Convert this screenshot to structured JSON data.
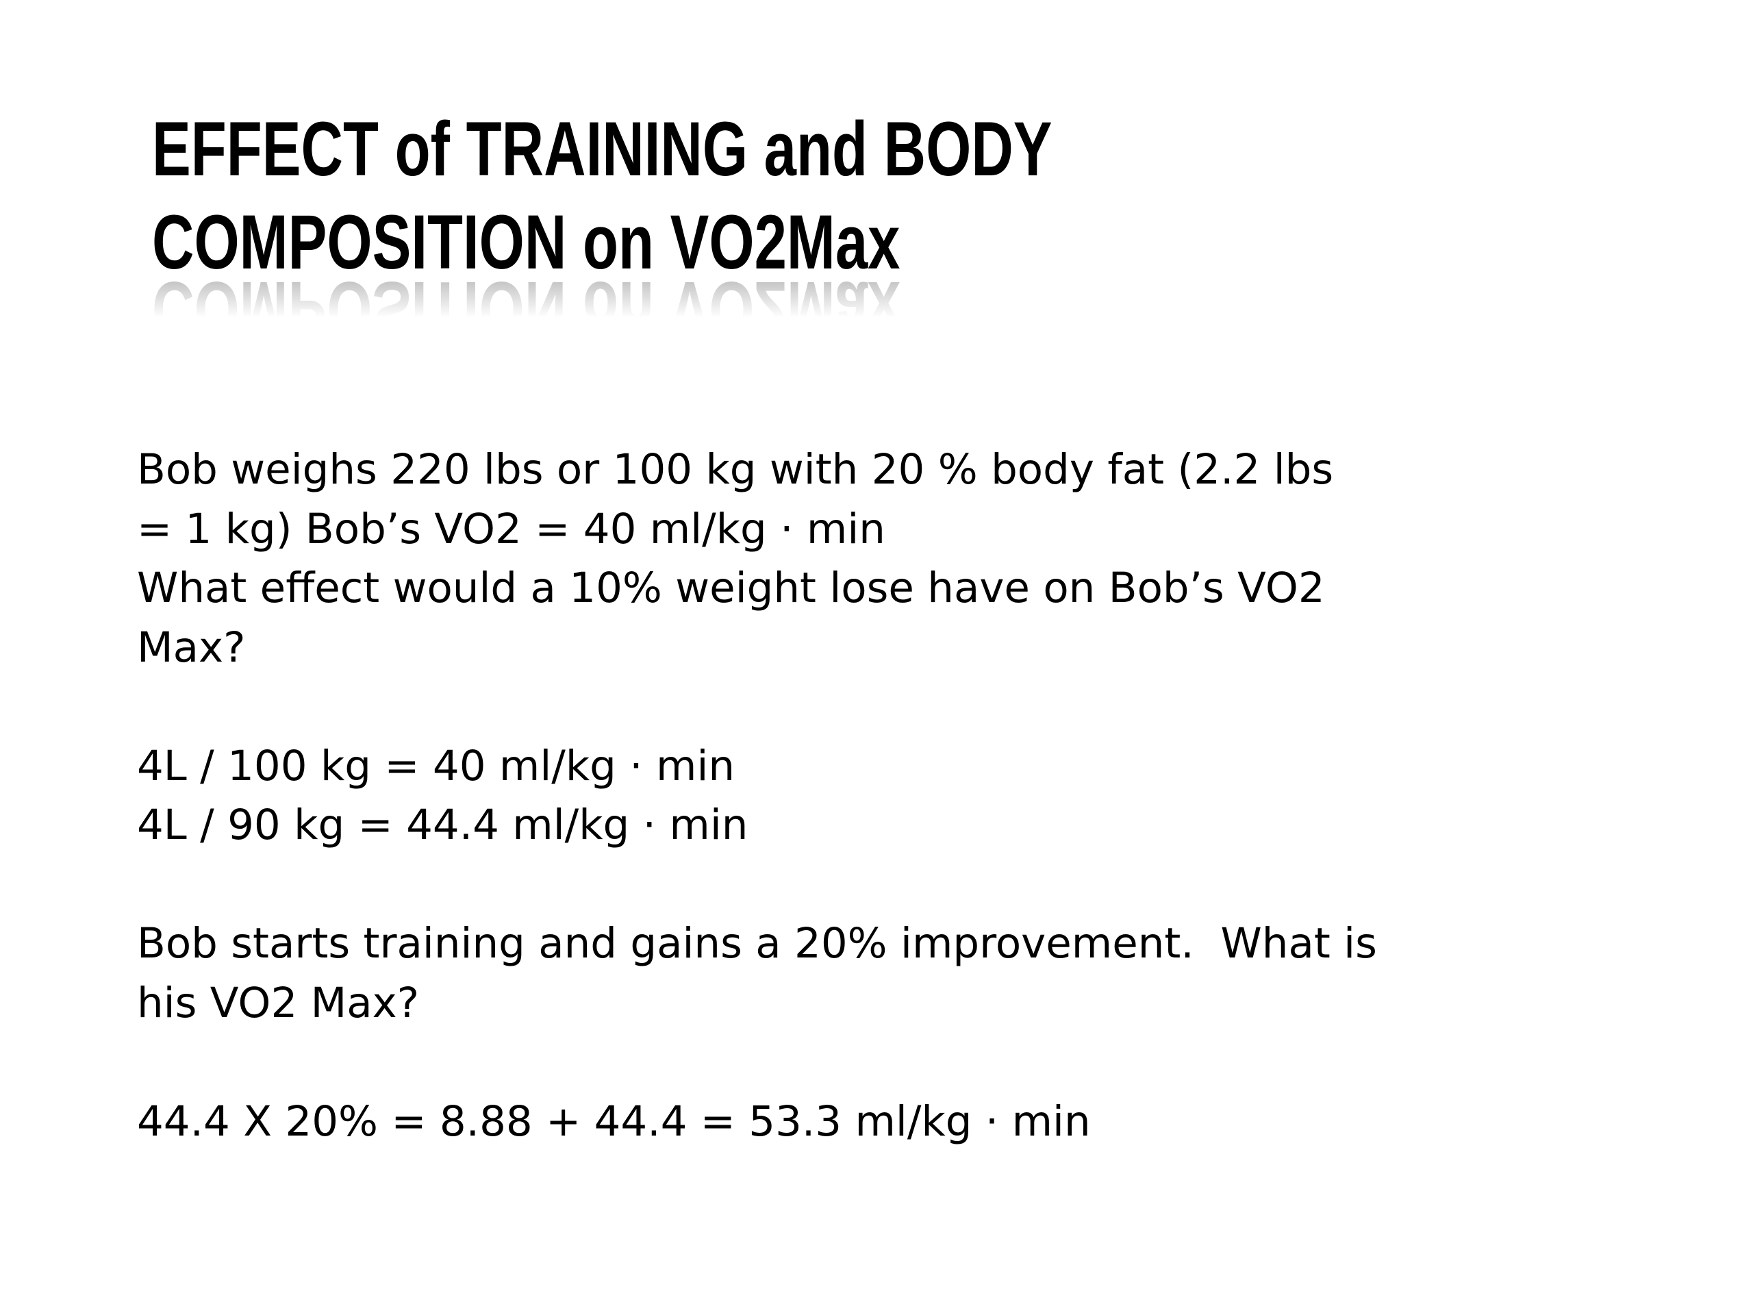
{
  "slide": {
    "title": {
      "lines": [
        "EFFECT of TRAINING and BODY",
        "COMPOSITION on VO2Max"
      ]
    },
    "body": {
      "paragraphs": [
        {
          "lines": [
            "Bob weighs 220 lbs or 100 kg with 20 % body fat (2.2 lbs",
            "= 1 kg) Bob’s VO2 = 40 ml/kg · min",
            "What effect would a 10% weight lose have on Bob’s VO2",
            "Max?"
          ]
        },
        {
          "lines": [
            "4L / 100 kg = 40 ml/kg · min",
            "4L / 90 kg = 44.4 ml/kg · min"
          ]
        },
        {
          "lines": [
            "Bob starts training and gains a 20% improvement.  What is",
            "his VO2 Max?"
          ]
        },
        {
          "lines": [
            "44.4 X 20% = 8.88 + 44.4 = 53.3 ml/kg · min"
          ]
        }
      ]
    }
  }
}
